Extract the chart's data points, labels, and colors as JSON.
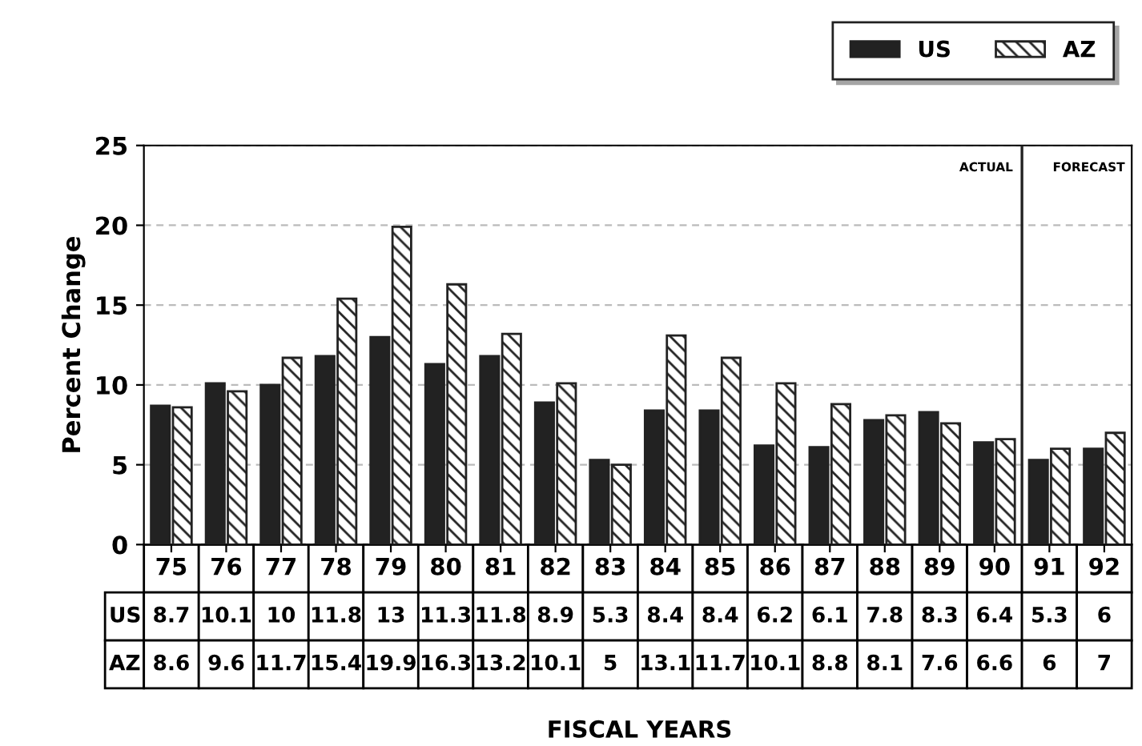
{
  "chart_data": {
    "type": "bar",
    "ylabel": "Percent Change",
    "categories": [
      "75",
      "76",
      "77",
      "78",
      "79",
      "80",
      "81",
      "82",
      "83",
      "84",
      "85",
      "86",
      "87",
      "88",
      "89",
      "90",
      "91",
      "92"
    ],
    "series": [
      {
        "name": "US",
        "color": "#222222",
        "values": [
          8.7,
          10.1,
          10,
          11.8,
          13,
          11.3,
          11.8,
          8.9,
          5.3,
          8.4,
          8.4,
          6.2,
          6.1,
          7.8,
          8.3,
          6.4,
          5.3,
          6
        ]
      },
      {
        "name": "AZ",
        "color": "#222222",
        "values": [
          8.6,
          9.6,
          11.7,
          15.4,
          19.9,
          16.3,
          13.2,
          10.1,
          5,
          13.1,
          11.7,
          10.1,
          8.8,
          8.1,
          7.6,
          6.6,
          6,
          7
        ]
      }
    ],
    "ylim": [
      0,
      25
    ],
    "yticks": [
      0,
      5,
      10,
      15,
      20,
      25
    ],
    "grid": "y",
    "legend": "top right",
    "data_labels": true,
    "ref_lines": [
      {
        "axis": "x",
        "value": "91",
        "color": "#222222"
      }
    ],
    "annotations": [
      "ACTUAL",
      "FORECAST",
      "FISCAL YEARS"
    ]
  }
}
